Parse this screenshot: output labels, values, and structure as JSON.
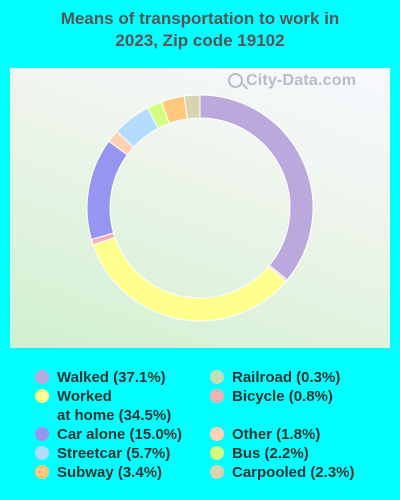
{
  "title_lines": [
    "Means of transportation to work in",
    "2023, Zip code 19102"
  ],
  "watermark": "City-Data.com",
  "chart_data": {
    "type": "pie",
    "style": "donut",
    "title": "Means of transportation to work in 2023, Zip code 19102",
    "slices": [
      {
        "label": "Walked",
        "value": 37.1,
        "display": "Walked (37.1%)",
        "color": "#bba8dc"
      },
      {
        "label": "Railroad",
        "value": 0.3,
        "display": "Railroad (0.3%)",
        "color": "#c2dfb6"
      },
      {
        "label": "Worked at home",
        "value": 34.5,
        "display": "Worked at home (34.5%)",
        "color": "#ffff8e"
      },
      {
        "label": "Bicycle",
        "value": 0.8,
        "display": "Bicycle (0.8%)",
        "color": "#f0b2b4"
      },
      {
        "label": "Car alone",
        "value": 15.0,
        "display": "Car alone (15.0%)",
        "color": "#9696f0"
      },
      {
        "label": "Other",
        "value": 1.8,
        "display": "Other (1.8%)",
        "color": "#ffd1b2"
      },
      {
        "label": "Streetcar",
        "value": 5.7,
        "display": "Streetcar (5.7%)",
        "color": "#b3dcff"
      },
      {
        "label": "Bus",
        "value": 2.2,
        "display": "Bus (2.2%)",
        "color": "#d2ff82"
      },
      {
        "label": "Subway",
        "value": 3.4,
        "display": "Subway (3.4%)",
        "color": "#ffc87c"
      },
      {
        "label": "Carpooled",
        "value": 2.3,
        "display": "Carpooled (2.3%)",
        "color": "#d8d4b0"
      }
    ]
  },
  "legend": [
    {
      "lines": [
        "Walked (37.1%)"
      ],
      "color": "#bba8dc"
    },
    {
      "lines": [
        "Railroad (0.3%)"
      ],
      "color": "#c2dfb6"
    },
    {
      "lines": [
        "Worked",
        "at home (34.5%)"
      ],
      "color": "#ffff8e"
    },
    {
      "lines": [
        "Bicycle (0.8%)"
      ],
      "color": "#f0b2b4"
    },
    {
      "lines": [
        "Car alone (15.0%)"
      ],
      "color": "#9696f0"
    },
    {
      "lines": [
        "Other (1.8%)"
      ],
      "color": "#ffd1b2"
    },
    {
      "lines": [
        "Streetcar (5.7%)"
      ],
      "color": "#b3dcff"
    },
    {
      "lines": [
        "Bus (2.2%)"
      ],
      "color": "#d2ff82"
    },
    {
      "lines": [
        "Subway (3.4%)"
      ],
      "color": "#ffc87c"
    },
    {
      "lines": [
        "Carpooled (2.3%)"
      ],
      "color": "#d8d4b0"
    }
  ]
}
